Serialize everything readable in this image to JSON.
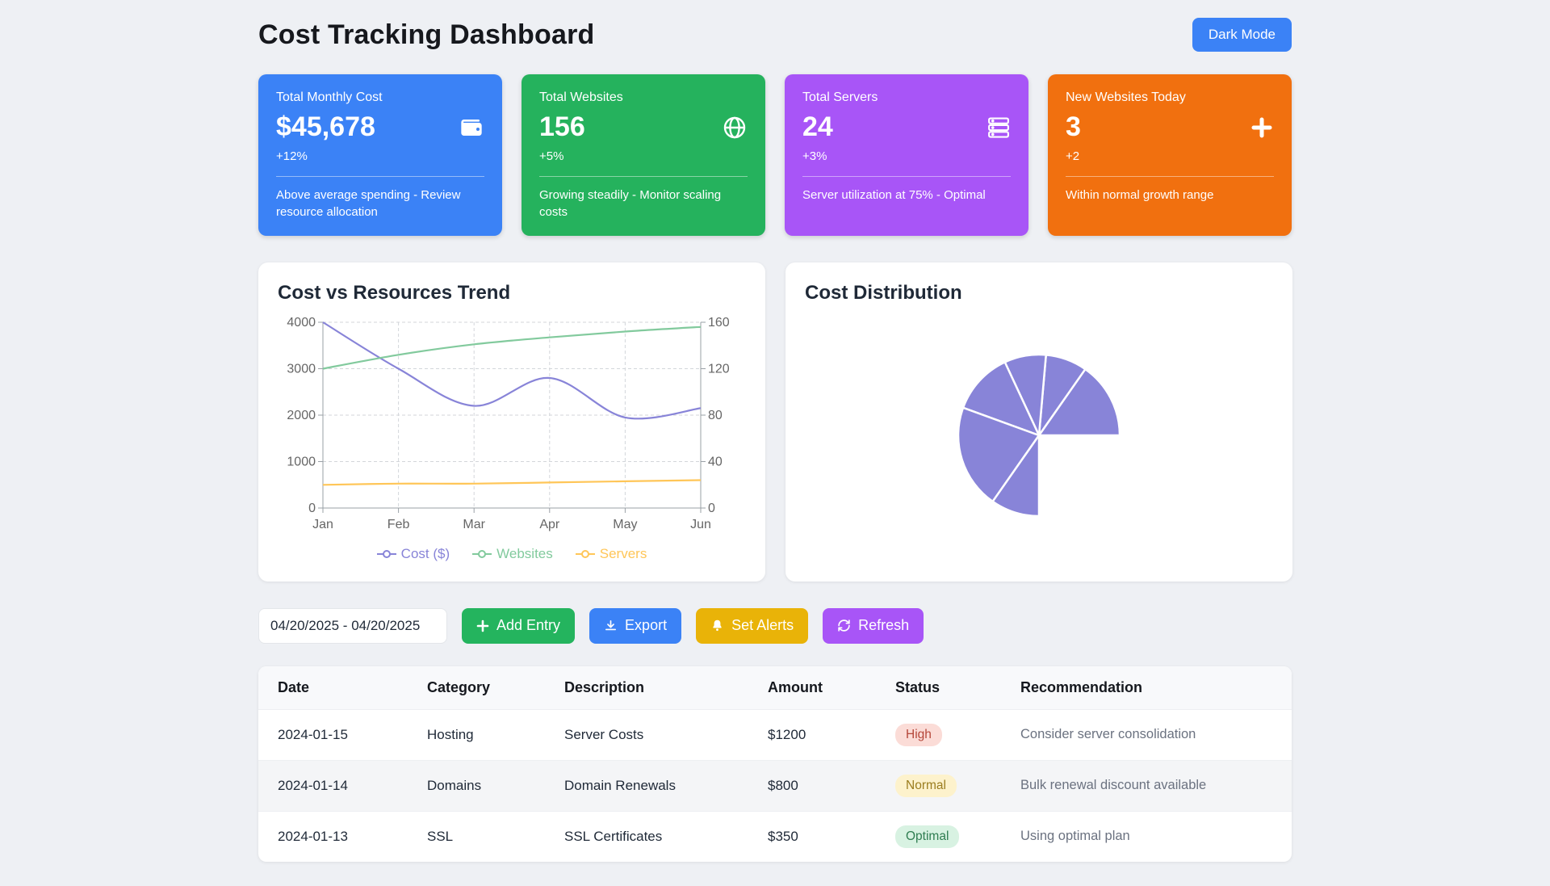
{
  "page": {
    "title": "Cost Tracking Dashboard",
    "dark_mode_button": "Dark Mode",
    "background": "#eef0f4",
    "accent_blue": "#3b82f6"
  },
  "stat_cards": [
    {
      "label": "Total Monthly Cost",
      "value": "$45,678",
      "delta": "+12%",
      "note": "Above average spending - Review resource allocation",
      "icon": "wallet-icon",
      "color": "#3b82f6"
    },
    {
      "label": "Total Websites",
      "value": "156",
      "delta": "+5%",
      "note": "Growing steadily - Monitor scaling costs",
      "icon": "globe-icon",
      "color": "#25b25d"
    },
    {
      "label": "Total Servers",
      "value": "24",
      "delta": "+3%",
      "note": "Server utilization at 75% - Optimal",
      "icon": "server-icon",
      "color": "#a855f7"
    },
    {
      "label": "New Websites Today",
      "value": "3",
      "delta": "+2",
      "note": "Within normal growth range",
      "icon": "plus-icon",
      "color": "#f1700f"
    }
  ],
  "chart_data": [
    {
      "type": "line",
      "title": "Cost vs Resources Trend",
      "x": [
        "Jan",
        "Feb",
        "Mar",
        "Apr",
        "May",
        "Jun"
      ],
      "series": [
        {
          "name": "Cost ($)",
          "axis": "left",
          "color": "#8884d8",
          "values": [
            4000,
            3000,
            2200,
            2800,
            1950,
            2150
          ]
        },
        {
          "name": "Websites",
          "axis": "right",
          "color": "#82ca9d",
          "values": [
            120,
            132,
            141,
            147,
            152,
            156
          ]
        },
        {
          "name": "Servers",
          "axis": "right",
          "color": "#ffc658",
          "values": [
            20,
            21,
            21,
            22,
            23,
            24
          ]
        }
      ],
      "left_axis": {
        "min": 0,
        "max": 4000,
        "ticks": [
          0,
          1000,
          2000,
          3000,
          4000
        ]
      },
      "right_axis": {
        "min": 0,
        "max": 160,
        "ticks": [
          0,
          40,
          80,
          120,
          160
        ]
      },
      "grid": "dashed",
      "legend_position": "bottom"
    },
    {
      "type": "pie",
      "title": "Cost Distribution",
      "color": "#8884d8",
      "start_angle_deg": 0,
      "total_angle_deg": 270,
      "direction": "ccw",
      "slices": [
        55,
        30,
        30,
        45,
        75,
        35
      ]
    }
  ],
  "toolbar": {
    "date_range": "04/20/2025 - 04/20/2025",
    "add_entry_label": "Add Entry",
    "export_label": "Export",
    "set_alerts_label": "Set Alerts",
    "refresh_label": "Refresh"
  },
  "table": {
    "headers": [
      "Date",
      "Category",
      "Description",
      "Amount",
      "Status",
      "Recommendation"
    ],
    "rows": [
      {
        "date": "2024-01-15",
        "category": "Hosting",
        "description": "Server Costs",
        "amount": "$1200",
        "status": "High",
        "recommendation": "Consider server consolidation"
      },
      {
        "date": "2024-01-14",
        "category": "Domains",
        "description": "Domain Renewals",
        "amount": "$800",
        "status": "Normal",
        "recommendation": "Bulk renewal discount available"
      },
      {
        "date": "2024-01-13",
        "category": "SSL",
        "description": "SSL Certificates",
        "amount": "$350",
        "status": "Optimal",
        "recommendation": "Using optimal plan"
      }
    ],
    "status_styles": {
      "High": {
        "bg": "#fbdcd7",
        "fg": "#b5473a"
      },
      "Normal": {
        "bg": "#fdf2cc",
        "fg": "#9b7d1f"
      },
      "Optimal": {
        "bg": "#d8f2e2",
        "fg": "#2f7d51"
      }
    }
  }
}
